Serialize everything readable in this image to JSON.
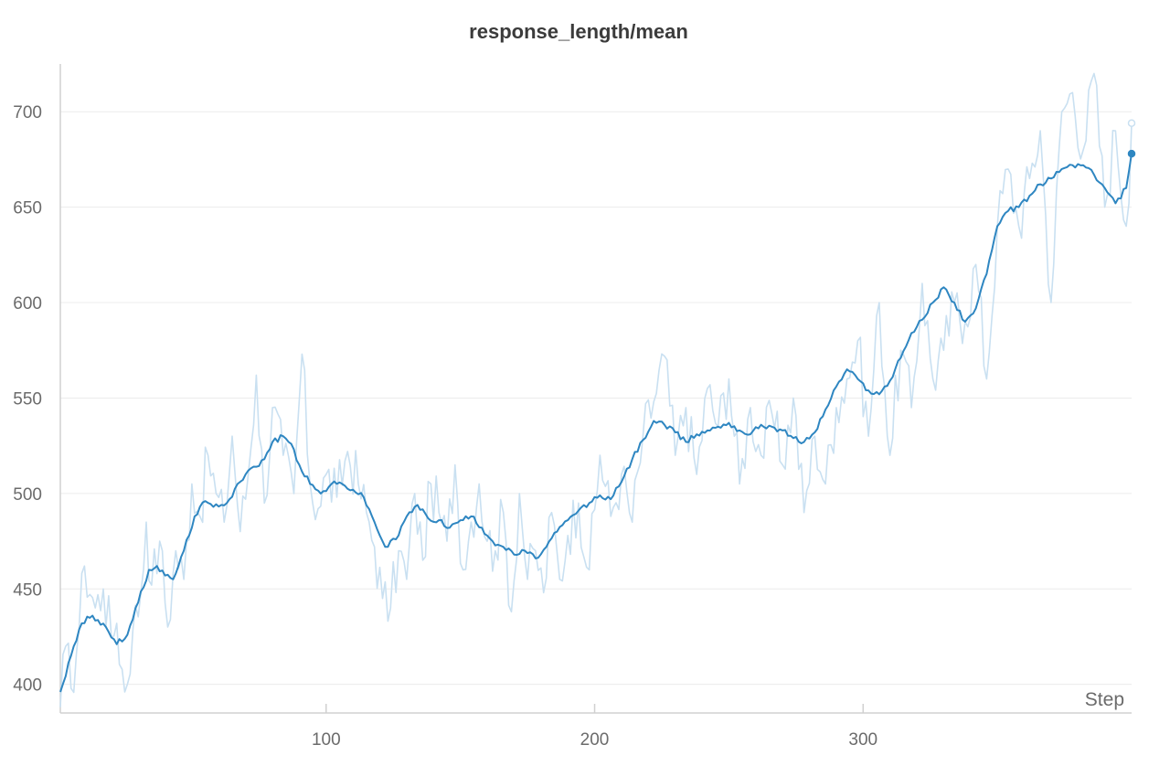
{
  "chart_data": {
    "type": "line",
    "title": "response_length/mean",
    "xlabel": "Step",
    "ylabel": "",
    "xlim": [
      1,
      400
    ],
    "ylim": [
      385,
      725
    ],
    "x_ticks": [
      100,
      200,
      300
    ],
    "y_ticks": [
      400,
      450,
      500,
      550,
      600,
      650,
      700
    ],
    "grid": "horizontal",
    "legend": "none",
    "series": [
      {
        "role": "raw",
        "color": "#c9e0f1",
        "keypoints_x": [
          1,
          3,
          5,
          8,
          10,
          14,
          17,
          20,
          22,
          25,
          28,
          31,
          33,
          35,
          38,
          41,
          44,
          47,
          50,
          53,
          56,
          59,
          62,
          65,
          68,
          71,
          74,
          77,
          80,
          84,
          88,
          91,
          94,
          97,
          100,
          104,
          108,
          112,
          115,
          118,
          121,
          124,
          127,
          130,
          133,
          136,
          139,
          142,
          145,
          148,
          151,
          154,
          157,
          160,
          163,
          166,
          169,
          172,
          175,
          178,
          181,
          184,
          187,
          190,
          194,
          198,
          202,
          206,
          210,
          214,
          218,
          222,
          226,
          230,
          234,
          238,
          242,
          246,
          250,
          254,
          258,
          262,
          266,
          270,
          274,
          278,
          282,
          286,
          290,
          294,
          298,
          302,
          306,
          310,
          314,
          318,
          322,
          326,
          330,
          334,
          338,
          342,
          346,
          350,
          354,
          358,
          362,
          366,
          370,
          374,
          378,
          382,
          386,
          390,
          394,
          398,
          400
        ],
        "keypoints_y": [
          388,
          420,
          398,
          430,
          462,
          440,
          450,
          425,
          432,
          396,
          428,
          448,
          485,
          452,
          475,
          430,
          470,
          455,
          505,
          488,
          520,
          500,
          485,
          530,
          480,
          510,
          562,
          495,
          545,
          520,
          500,
          573,
          505,
          492,
          510,
          498,
          522,
          505,
          490,
          472,
          445,
          440,
          470,
          455,
          500,
          465,
          505,
          490,
          475,
          515,
          460,
          485,
          505,
          475,
          470,
          490,
          438,
          500,
          455,
          470,
          448,
          490,
          455,
          478,
          495,
          460,
          520,
          488,
          510,
          485,
          530,
          548,
          572,
          520,
          545,
          510,
          555,
          535,
          560,
          505,
          545,
          520,
          542,
          515,
          550,
          490,
          530,
          505,
          545,
          560,
          580,
          530,
          600,
          520,
          575,
          545,
          610,
          560,
          575,
          600,
          590,
          620,
          560,
          640,
          670,
          640,
          665,
          690,
          600,
          700,
          710,
          680,
          720,
          650,
          690,
          640,
          694
        ]
      },
      {
        "role": "smoothed",
        "color": "#2e86c1",
        "keypoints_x": [
          1,
          5,
          9,
          13,
          18,
          22,
          26,
          30,
          34,
          37,
          40,
          43,
          47,
          51,
          55,
          58,
          61,
          64,
          67,
          71,
          74,
          77,
          80,
          84,
          87,
          90,
          94,
          98,
          102,
          106,
          110,
          114,
          118,
          122,
          126,
          130,
          134,
          138,
          142,
          146,
          150,
          154,
          158,
          162,
          166,
          170,
          174,
          178,
          182,
          186,
          190,
          194,
          198,
          202,
          206,
          210,
          214,
          218,
          222,
          226,
          230,
          234,
          238,
          242,
          246,
          250,
          254,
          258,
          262,
          266,
          270,
          274,
          278,
          282,
          286,
          290,
          294,
          298,
          302,
          306,
          310,
          314,
          318,
          322,
          326,
          330,
          334,
          338,
          342,
          346,
          350,
          354,
          358,
          362,
          366,
          370,
          374,
          378,
          382,
          386,
          390,
          394,
          398,
          400
        ],
        "keypoints_y": [
          396,
          415,
          432,
          436,
          430,
          421,
          426,
          443,
          460,
          462,
          457,
          455,
          470,
          488,
          496,
          493,
          494,
          497,
          505,
          512,
          514,
          518,
          527,
          530,
          526,
          515,
          505,
          500,
          505,
          505,
          502,
          498,
          485,
          472,
          476,
          488,
          494,
          487,
          486,
          482,
          486,
          488,
          482,
          475,
          472,
          468,
          470,
          466,
          472,
          480,
          486,
          491,
          495,
          499,
          497,
          506,
          518,
          528,
          538,
          536,
          532,
          527,
          531,
          533,
          535,
          537,
          533,
          531,
          536,
          535,
          533,
          529,
          527,
          532,
          544,
          556,
          565,
          560,
          554,
          552,
          559,
          571,
          584,
          591,
          600,
          608,
          600,
          590,
          597,
          615,
          640,
          648,
          650,
          656,
          662,
          665,
          670,
          672,
          672,
          667,
          660,
          652,
          660,
          678
        ]
      }
    ]
  }
}
